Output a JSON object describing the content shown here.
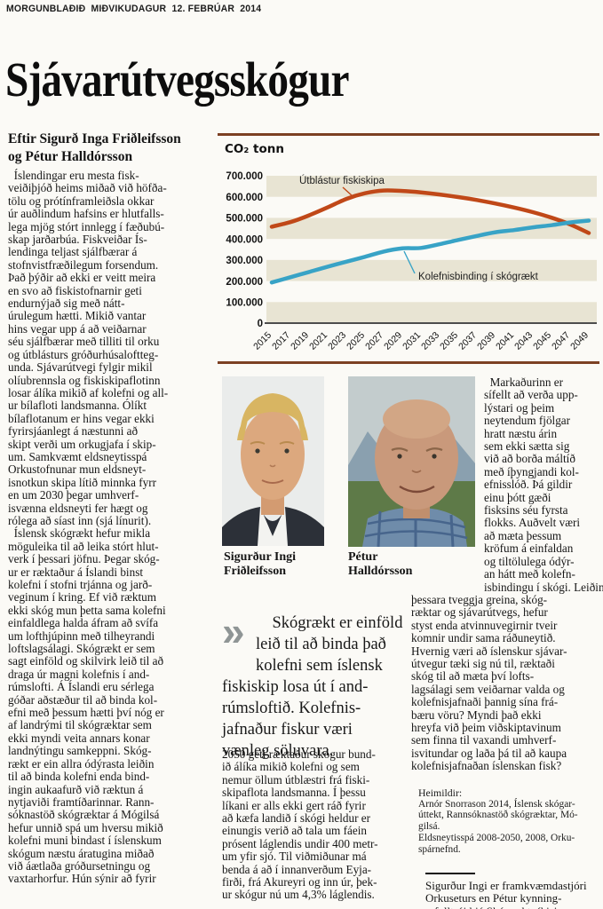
{
  "masthead": "MORGUNBLAÐIÐ  MIÐVIKUDAGUR  12. FEBRÚAR  2014",
  "headline": "Sjávarútvegsskógur",
  "byline": [
    "Eftir Sigurð Inga Friðleifsson",
    "og Pétur Halldórsson"
  ],
  "article": {
    "col1": [
      "  Íslendingar eru mesta fisk-",
      "veiðiþjóð heims miðað við höfða-",
      "tölu og prótínframleiðsla okkar",
      "úr auðlindum hafsins er hlutfalls-",
      "lega mjög stórt innlegg í fæðubú-",
      "skap jarðarbúa. Fiskveiðar Ís-",
      "lendinga teljast sjálfbærar á",
      "stofnvistfræðilegum forsendum.",
      "Það þýðir að ekki er veitt meira",
      "en svo að fiskistofnarnir geti",
      "endurnýjað sig með nátt-",
      "úrulegum hætti. Mikið vantar",
      "hins vegar upp á að veiðarnar",
      "séu sjálfbærar með tilliti til orku",
      "og útblásturs gróðurhúsaloftteg-",
      "unda. Sjávarútvegi fylgir mikil",
      "olíubrennsla og fiskiskipaflotinn",
      "losar álíka mikið af kolefni og all-",
      "ur bílafloti landsmanna. Ólíkt",
      "bílaflotanum er hins vegar ekki",
      "fyrirsjáanlegt á næstunni að",
      "skipt verði um orkugjafa í skip-",
      "um. Samkvæmt eldsneytisspá",
      "Orkustofnunar mun eldsneyt-",
      "isnotkun skipa lítið minnka fyrr",
      "en um 2030 þegar umhverf-",
      "isvænna eldsneyti fer hægt og",
      "rólega að síast inn (sjá línurit).",
      "  Íslensk skógrækt hefur mikla",
      "möguleika til að leika stórt hlut-",
      "verk í þessari jöfnu. Þegar skóg-",
      "ur er ræktaður á Íslandi binst",
      "kolefni í stofni trjánna og jarð-",
      "veginum í kring. Ef við ræktum",
      "ekki skóg mun þetta sama kolefni",
      "einfaldlega halda áfram að svífa",
      "um lofthjúpinn með tilheyrandi",
      "loftslagsálagi. Skógrækt er sem",
      "sagt einföld og skilvirk leið til að",
      "draga úr magni kolefnis í and-",
      "rúmslofti. Á Íslandi eru sérlega",
      "góðar aðstæður til að binda kol-",
      "efni með þessum hætti því nóg er",
      "af landrými til skógræktar sem",
      "ekki myndi veita annars konar",
      "landnýtingu samkeppni. Skóg-",
      "rækt er ein allra ódýrasta leiðin",
      "til að binda kolefni enda bind-",
      "ingin aukaafurð við ræktun á",
      "nytjaviði framtíðarinnar. Rann-",
      "sóknastöð skógræktar á Mógilsá",
      "hefur unnið spá um hversu mikið",
      "kolefni muni bindast í íslenskum",
      "skógum næstu áratugina miðað",
      "við áætlaða gróðursetningu og",
      "vaxtarhorfur. Hún sýnir að fyrir"
    ],
    "col2_continuation": [
      "2050 geti ræktaður skógur bund-",
      "ið álíka mikið kolefni og sem",
      "nemur öllum útblæstri frá fiski-",
      "skipaflota landsmanna. Í þessu",
      "líkani er alls ekki gert ráð fyrir",
      "að kæfa landið í skógi heldur er",
      "einungis verið að tala um fáein",
      "prósent láglendis undir 400 metr-",
      "um yfir sjó. Til viðmiðunar má",
      "benda á að í innanverðum Eyja-",
      "firði, frá Akureyri og inn úr, þek-",
      "ur skógur nú um 4,3% láglendis."
    ],
    "col3": [
      "  Markaðurinn er",
      "sífellt að verða upp-",
      "lýstari og þeim",
      "neytendum fjölgar",
      "hratt næstu árin",
      "sem ekki sætta sig",
      "við að borða máltíð",
      "með íþyngjandi kol-",
      "efnisslóð. Þá gildir",
      "einu þótt gæði",
      "fisksins séu fyrsta",
      "flokks. Auðvelt væri",
      "að mæta þessum",
      "kröfum á einfaldan",
      "og tiltölulega ódýr-",
      "an hátt með kolefn-",
      "isbindingu í skógi. Leiðin á milli",
      "þessara tveggja greina, skóg-",
      "ræktar og sjávarútvegs, hefur",
      "styst enda atvinnuvegirnir tveir",
      "komnir undir sama ráðuneytið.",
      "Hvernig væri að íslenskur sjávar-",
      "útvegur tæki sig nú til, ræktaði",
      "skóg til að mæta því lofts-",
      "lagsálagi sem veiðarnar valda og",
      "kolefnisjafnaði þannig sína frá-",
      "bæru vöru? Myndi það ekki",
      "hreyfa við þeim viðskiptavinum",
      "sem finna til vaxandi umhverf-",
      "isvitundar og laða þá til að kaupa",
      "kolefnisjafnaðan íslenskan fisk?"
    ]
  },
  "pullquote": {
    "mark": "»",
    "lines": [
      "Skógrækt er einföld",
      "leið til að binda það",
      "kolefni sem íslensk",
      "fiskiskip losa út í and-",
      "rúmsloftið. Kolefnis-",
      "jafnaður fiskur væri",
      "vænleg söluvara."
    ]
  },
  "photos": {
    "sigurdur_caption": [
      "Sigurður Ingi",
      "Friðleifsson"
    ],
    "petur_caption": [
      "Pétur",
      "Halldórsson"
    ]
  },
  "sources": {
    "heading": "Heimildir:",
    "lines": [
      "Arnór Snorrason 2014, Íslensk skógar-",
      "úttekt, Rannsóknastöð skógræktar, Mó-",
      "gilsá.",
      "Eldsneytisspá 2008-2050, 2008, Orku-",
      "spárnefnd."
    ]
  },
  "author_note": [
    "Sigurður Ingi er framkvæmdastjóri",
    "Orkuseturs en Pétur kynning-",
    "arfulltrúi hjá Skógrækt ríkisins."
  ],
  "chart_data": {
    "type": "line",
    "title": "CO₂ tonn",
    "x": [
      2015,
      2017,
      2019,
      2021,
      2023,
      2025,
      2027,
      2029,
      2031,
      2033,
      2035,
      2037,
      2039,
      2041,
      2043,
      2045,
      2047,
      2049
    ],
    "xtick_labels": [
      "2015",
      "2017",
      "2019",
      "2021",
      "2023",
      "2025",
      "2027",
      "2029",
      "2031",
      "2033",
      "2035",
      "2037",
      "2039",
      "2041",
      "2043",
      "2045",
      "2047",
      "2049"
    ],
    "ytick_labels": [
      "700.000",
      "600.000",
      "500.000",
      "400.000",
      "300.000",
      "200.000",
      "100.000",
      "0"
    ],
    "ylim": [
      0,
      700000
    ],
    "ylabel": "CO₂ tonn",
    "grid": "horizontal-bands",
    "legend_position": "inline-labels",
    "band_color": "#e8e4d3",
    "frame_color": "#7c4023",
    "axis_color": "#4d4d4d",
    "series": [
      {
        "name": "Útblástur fiskiskipa",
        "color": "#c04818",
        "values": [
          458000,
          480000,
          512000,
          550000,
          590000,
          617000,
          630000,
          628000,
          621000,
          611000,
          599000,
          585000,
          568000,
          549000,
          527000,
          501000,
          469000,
          428000
        ]
      },
      {
        "name": "Kolefnisbinding í skógrækt",
        "color": "#38a3c6",
        "values": [
          193000,
          218000,
          243000,
          268000,
          292000,
          315000,
          340000,
          355000,
          357000,
          375000,
          395000,
          414000,
          432000,
          442000,
          455000,
          465000,
          478000,
          487000
        ]
      }
    ]
  },
  "colors": {
    "rule_brown": "#7c4023",
    "quote_mark_gray": "#8f9595",
    "page_background": "#fbfaf6"
  }
}
